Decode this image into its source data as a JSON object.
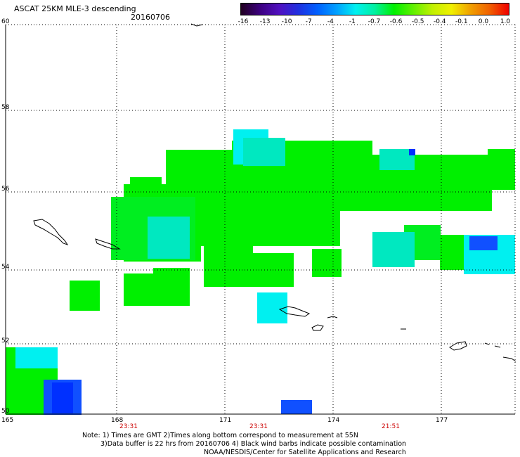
{
  "header": {
    "title": "ASCAT 25KM MLE-3 descending",
    "date": "20160706"
  },
  "colorbar": {
    "labels": [
      "-16",
      "-13",
      "-10",
      "-7",
      "-4",
      "-1",
      "-0.7",
      "-0.6",
      "-0.5",
      "-0.4",
      "-0.1",
      "0.0",
      "1.0"
    ],
    "stops": [
      "#200020",
      "#3c0080",
      "#5010c0",
      "#2030e0",
      "#0060ff",
      "#00a0ff",
      "#00f0f0",
      "#00f0a0",
      "#00f000",
      "#60f000",
      "#c0f000",
      "#f0f000",
      "#f0a000",
      "#f06000",
      "#f00000"
    ]
  },
  "map": {
    "lat_labels": [
      "60",
      "58",
      "56",
      "54",
      "52",
      "50"
    ],
    "lon_labels": [
      "165",
      "168",
      "171",
      "174",
      "177"
    ],
    "time_labels": [
      "23:31",
      "23:31",
      "21:51"
    ],
    "colors": {
      "green": "#00f000",
      "green2": "#00ee20",
      "cyan": "#00f0f0",
      "cyan2": "#00e8c0",
      "blue": "#1050ff",
      "navy": "#0030ff"
    }
  },
  "notes": {
    "line1": "Note: 1) Times are GMT 2)Times along bottom correspond to measurement at 55N",
    "line2": "3)Data buffer is 22 hrs from 20160706 4) Black wind barbs indicate possible contamination",
    "line3": "NOAA/NESDIS/Center for Satellite Applications and Research"
  }
}
